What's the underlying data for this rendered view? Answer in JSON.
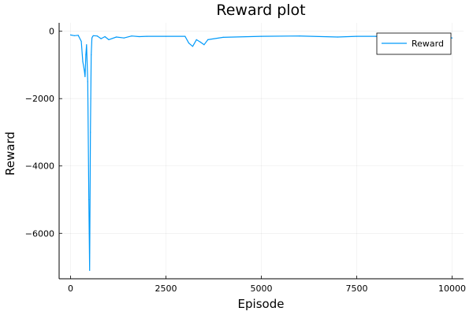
{
  "chart_data": {
    "type": "line",
    "title": "Reward plot",
    "xlabel": "Episode",
    "ylabel": "Reward",
    "xlim": [
      -300,
      10300
    ],
    "ylim": [
      -7350,
      250
    ],
    "xticks": [
      0,
      2500,
      5000,
      7500,
      10000
    ],
    "yticks": [
      0,
      -2000,
      -4000,
      -6000
    ],
    "grid": true,
    "legend": "top-right",
    "series": [
      {
        "name": "Reward",
        "color": "#009AFA",
        "x": [
          0,
          100,
          200,
          280,
          320,
          360,
          380,
          400,
          420,
          450,
          480,
          500,
          520,
          540,
          560,
          580,
          600,
          700,
          800,
          900,
          1000,
          1200,
          1400,
          1600,
          1800,
          2000,
          2500,
          3000,
          3100,
          3200,
          3300,
          3400,
          3500,
          3600,
          4000,
          5000,
          6000,
          7000,
          7500,
          8000,
          8500,
          9000,
          9500,
          9800,
          10000
        ],
        "y": [
          -110,
          -130,
          -120,
          -300,
          -900,
          -1150,
          -1350,
          -700,
          -400,
          -1500,
          -5000,
          -7100,
          -3000,
          -700,
          -200,
          -150,
          -130,
          -140,
          -220,
          -160,
          -250,
          -170,
          -200,
          -140,
          -160,
          -150,
          -150,
          -150,
          -350,
          -450,
          -250,
          -320,
          -400,
          -250,
          -180,
          -150,
          -140,
          -170,
          -150,
          -150,
          -160,
          -170,
          -160,
          -170,
          -200
        ]
      }
    ]
  }
}
